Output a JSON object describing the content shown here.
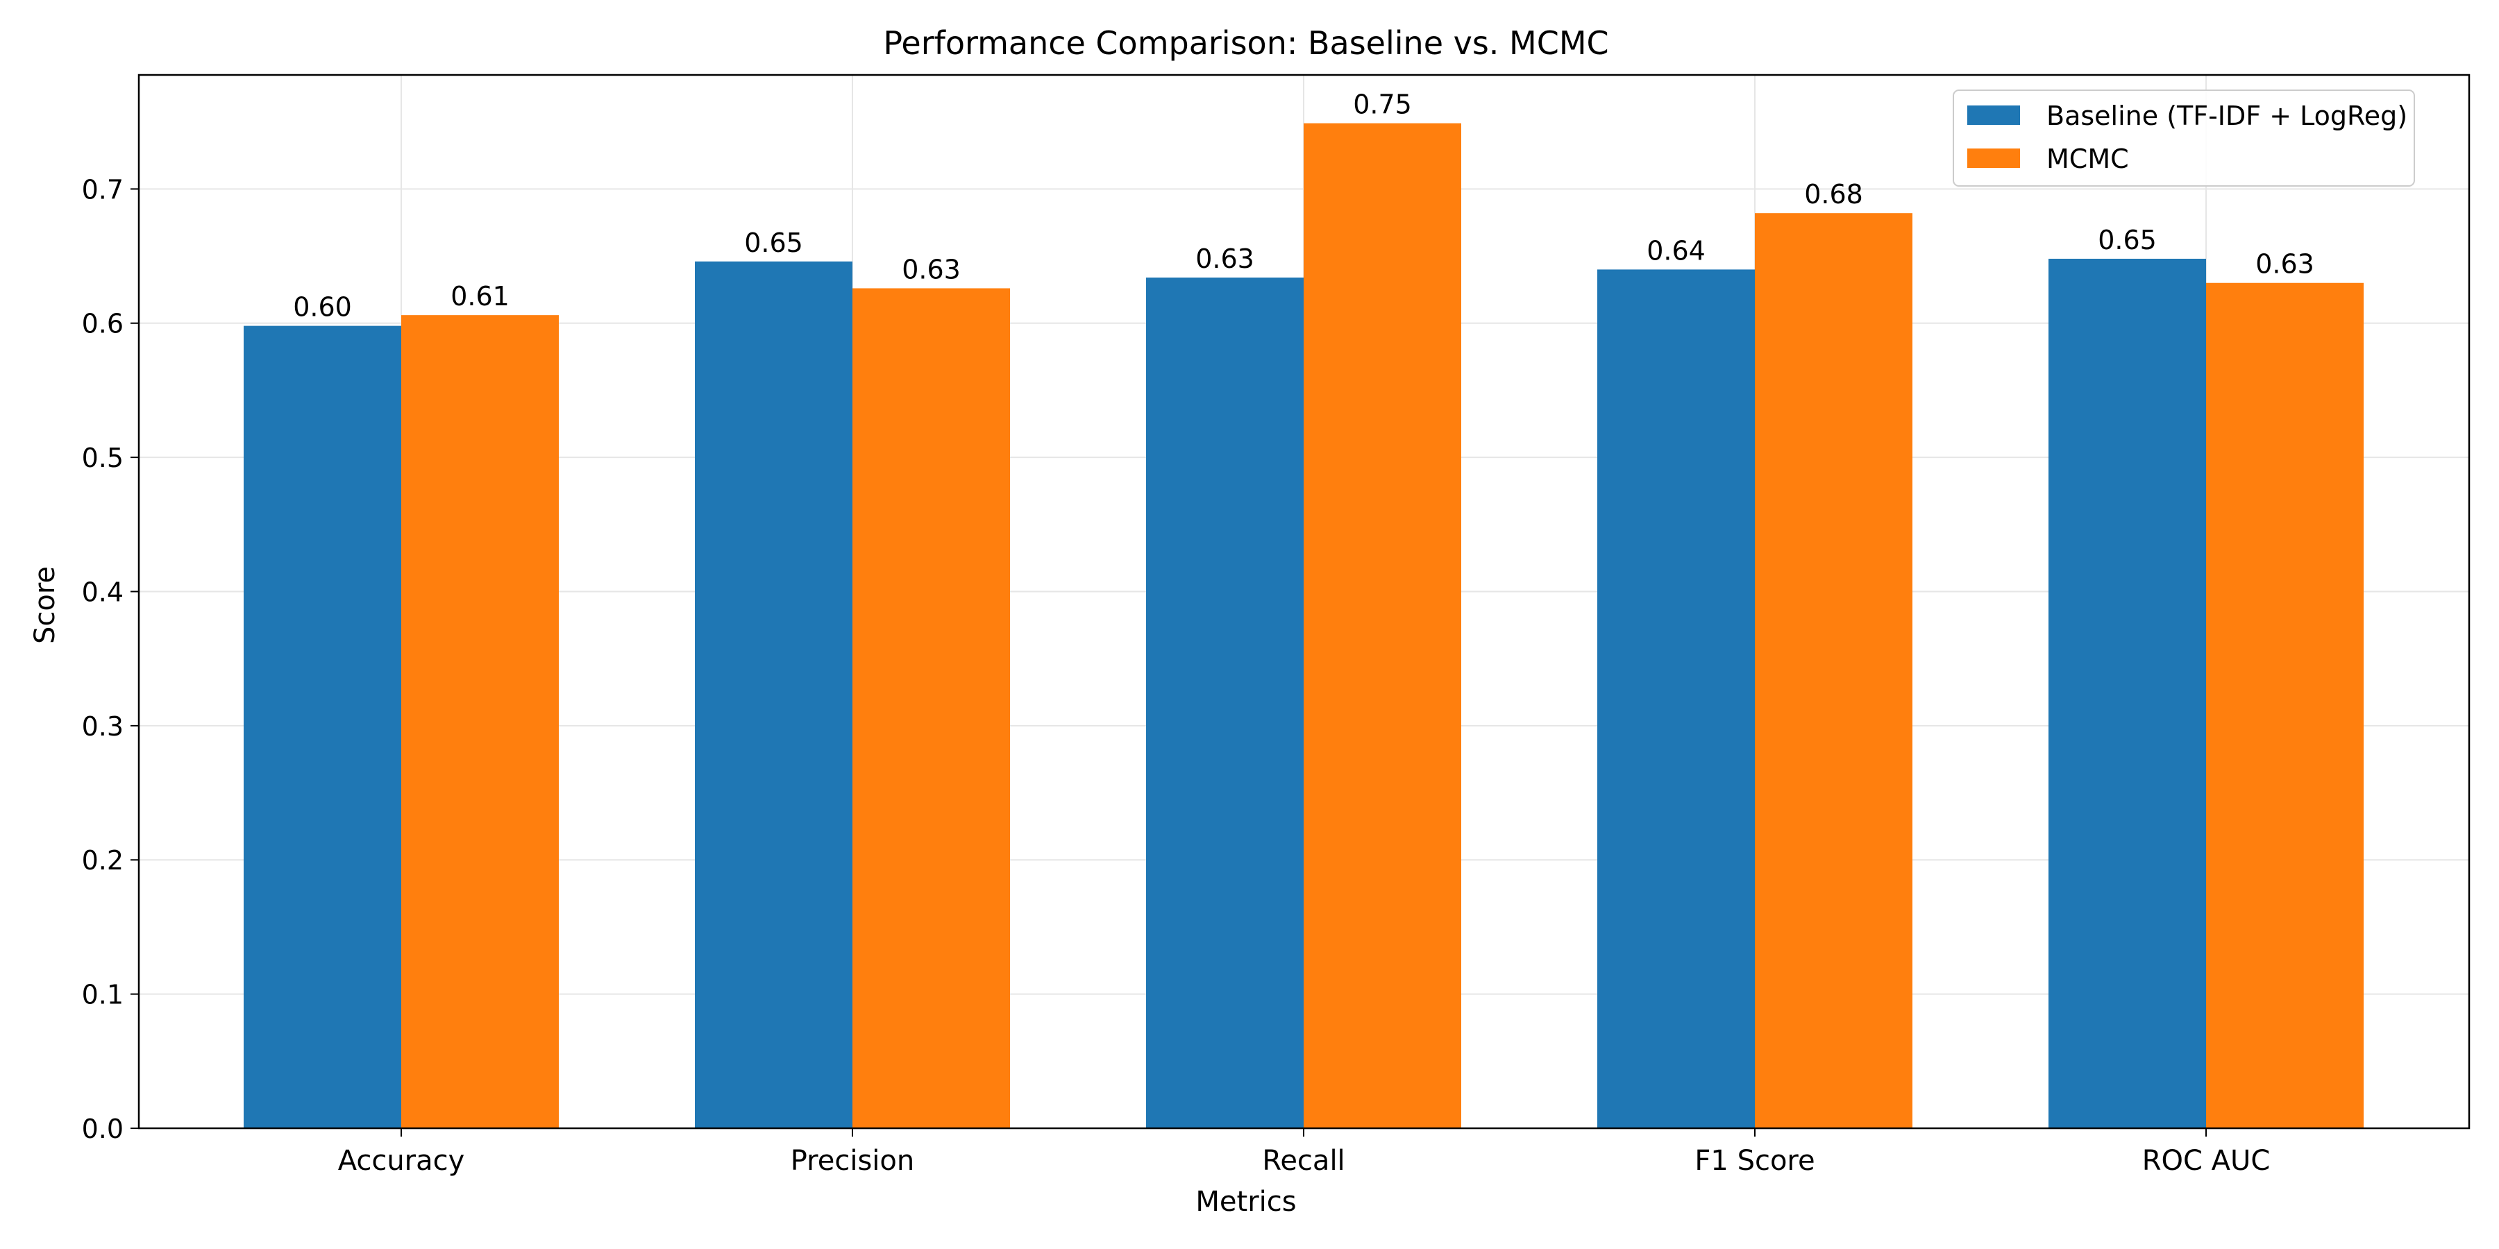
{
  "chart_data": {
    "type": "bar",
    "title": "Performance Comparison: Baseline vs. MCMC",
    "xlabel": "Metrics",
    "ylabel": "Score",
    "categories": [
      "Accuracy",
      "Precision",
      "Recall",
      "F1 Score",
      "ROC AUC"
    ],
    "series": [
      {
        "name": "Baseline (TF-IDF + LogReg)",
        "color": "#1f77b4",
        "values": [
          0.598,
          0.646,
          0.634,
          0.64,
          0.648
        ],
        "labels": [
          "0.60",
          "0.65",
          "0.63",
          "0.64",
          "0.65"
        ]
      },
      {
        "name": "MCMC",
        "color": "#ff7f0e",
        "values": [
          0.606,
          0.626,
          0.749,
          0.682,
          0.63
        ],
        "labels": [
          "0.61",
          "0.63",
          "0.75",
          "0.68",
          "0.63"
        ]
      }
    ],
    "ylim": [
      0,
      0.785
    ],
    "yticks": [
      0.0,
      0.1,
      0.2,
      0.3,
      0.4,
      0.5,
      0.6,
      0.7
    ],
    "ytick_labels": [
      "0.0",
      "0.1",
      "0.2",
      "0.3",
      "0.4",
      "0.5",
      "0.6",
      "0.7"
    ],
    "grid": true,
    "legend_position": "top-right"
  }
}
